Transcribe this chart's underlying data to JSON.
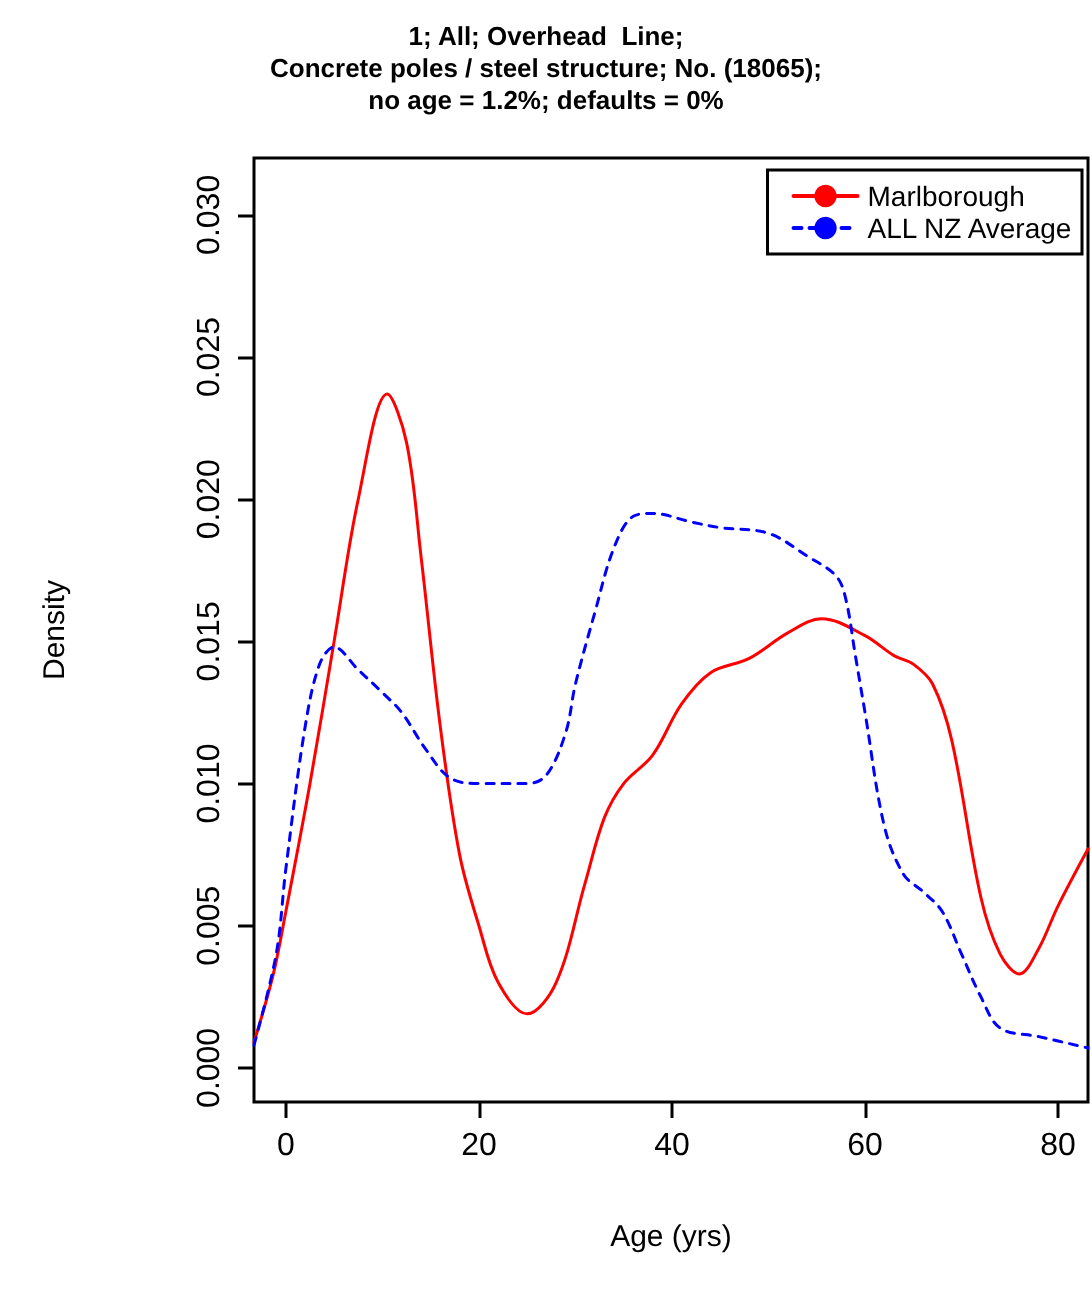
{
  "chart_data": {
    "type": "line",
    "title": "1; All; Overhead  Line;\nConcrete poles / steel structure; No. (18065);\nno age = 1.2%; defaults = 0%",
    "xlabel": "Age (yrs)",
    "ylabel": "Density",
    "xlim": [
      -3.3,
      83.1
    ],
    "ylim": [
      -0.0012,
      0.032
    ],
    "xticks": [
      0,
      20,
      40,
      60,
      80
    ],
    "yticks": [
      {
        "value": 0,
        "label": "0.000"
      },
      {
        "value": 0.005,
        "label": "0.005"
      },
      {
        "value": 0.01,
        "label": "0.010"
      },
      {
        "value": 0.015,
        "label": "0.015"
      },
      {
        "value": 0.02,
        "label": "0.020"
      },
      {
        "value": 0.025,
        "label": "0.025"
      },
      {
        "value": 0.03,
        "label": "0.030"
      }
    ],
    "grid": false,
    "legend": "top right",
    "marker": "none",
    "series": [
      {
        "name": "Marlborough",
        "color": "#ff0000",
        "line_style": "solid",
        "x": [
          -3.3,
          -1.3,
          0,
          2.5,
          5,
          7.5,
          10.5,
          12.5,
          14,
          16,
          18,
          20,
          22,
          25,
          28,
          31,
          33,
          35,
          38,
          41,
          44,
          48,
          52,
          55.5,
          60,
          63,
          65,
          67,
          69,
          72,
          74,
          76,
          78,
          80,
          83.1
        ],
        "values": [
          0.0009,
          0.0033,
          0.0055,
          0.01,
          0.015,
          0.02,
          0.0237,
          0.022,
          0.018,
          0.012,
          0.0075,
          0.005,
          0.003,
          0.0019,
          0.003,
          0.0065,
          0.0088,
          0.01,
          0.011,
          0.0128,
          0.0139,
          0.0144,
          0.0153,
          0.0158,
          0.0152,
          0.0145,
          0.0142,
          0.0135,
          0.0115,
          0.006,
          0.004,
          0.0033,
          0.0042,
          0.0057,
          0.0077
        ]
      },
      {
        "name": "ALL NZ Average",
        "color": "#0000ff",
        "line_style": "dashed",
        "x": [
          -3.3,
          -1,
          0,
          2,
          3.5,
          5,
          7.5,
          10,
          12,
          14.5,
          17,
          20,
          25,
          27,
          29,
          30,
          32,
          34,
          36,
          38,
          42,
          45,
          50,
          54,
          57,
          58,
          59,
          60,
          62,
          64,
          66,
          68,
          70,
          72,
          74,
          78,
          83.1
        ],
        "values": [
          0.0008,
          0.004,
          0.007,
          0.012,
          0.0142,
          0.0148,
          0.014,
          0.0132,
          0.0125,
          0.0112,
          0.0102,
          0.01,
          0.01,
          0.0103,
          0.0118,
          0.0135,
          0.016,
          0.0183,
          0.0194,
          0.0195,
          0.0192,
          0.019,
          0.0188,
          0.018,
          0.0173,
          0.0165,
          0.0145,
          0.0125,
          0.0085,
          0.0068,
          0.0062,
          0.0055,
          0.004,
          0.0025,
          0.0014,
          0.0011,
          0.0007
        ]
      }
    ]
  }
}
